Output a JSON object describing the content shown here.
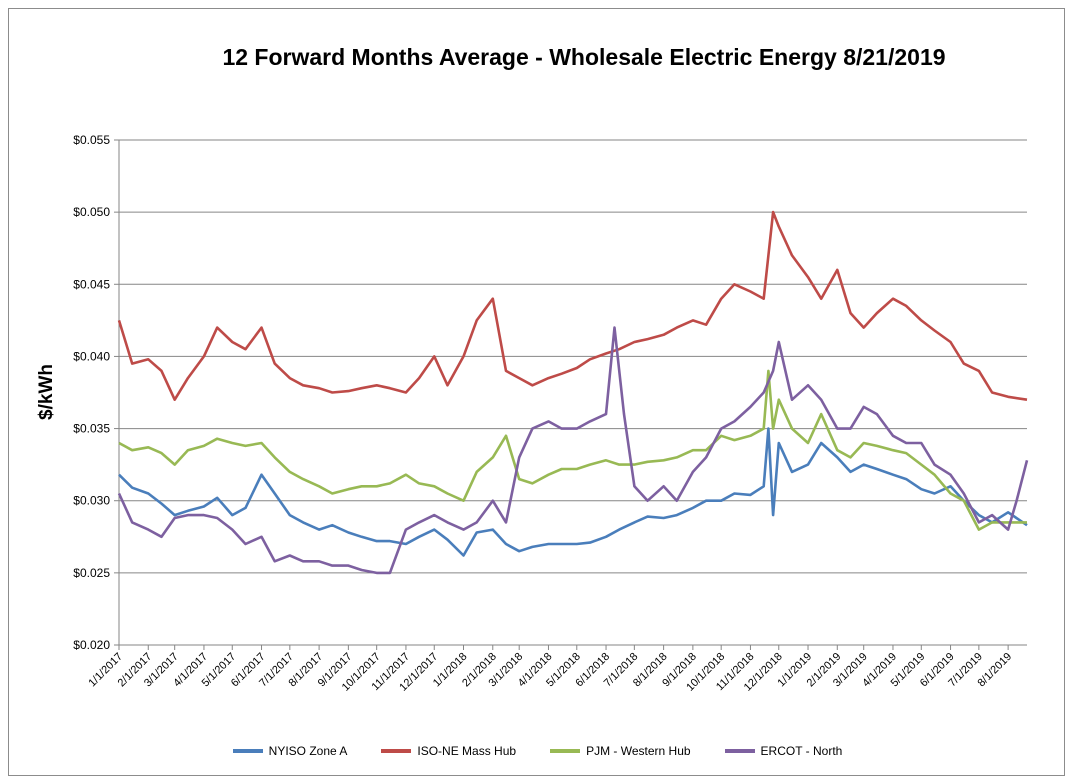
{
  "chart_data": {
    "type": "line",
    "title": "12 Forward Months Average - Wholesale Electric Energy 8/21/2019",
    "ylabel": "$/kWh",
    "xlabel": "",
    "ylim": [
      0.02,
      0.055
    ],
    "y_ticks": [
      "$0.020",
      "$0.025",
      "$0.030",
      "$0.035",
      "$0.040",
      "$0.045",
      "$0.050",
      "$0.055"
    ],
    "x_ticks": [
      "1/1/2017",
      "2/1/2017",
      "3/1/2017",
      "4/1/2017",
      "5/1/2017",
      "6/1/2017",
      "7/1/2017",
      "8/1/2017",
      "9/1/2017",
      "10/1/2017",
      "11/1/2017",
      "12/1/2017",
      "1/1/2018",
      "2/1/2018",
      "3/1/2018",
      "4/1/2018",
      "5/1/2018",
      "6/1/2018",
      "7/1/2018",
      "8/1/2018",
      "9/1/2018",
      "10/1/2018",
      "11/1/2018",
      "12/1/2018",
      "1/1/2019",
      "2/1/2019",
      "3/1/2019",
      "4/1/2019",
      "5/1/2019",
      "6/1/2019",
      "7/1/2019",
      "8/1/2019"
    ],
    "x_range": [
      "1/1/2017",
      "8/21/2019"
    ],
    "grid": "horizontal",
    "legend_position": "bottom",
    "series": [
      {
        "name": "NYISO Zone A",
        "color": "#4a7ebb",
        "x": [
          "1/1/2017",
          "1/15/2017",
          "2/1/2017",
          "2/15/2017",
          "3/1/2017",
          "3/15/2017",
          "4/1/2017",
          "4/15/2017",
          "5/1/2017",
          "5/15/2017",
          "6/1/2017",
          "6/15/2017",
          "7/1/2017",
          "7/15/2017",
          "8/1/2017",
          "8/15/2017",
          "9/1/2017",
          "9/15/2017",
          "10/1/2017",
          "10/15/2017",
          "11/1/2017",
          "11/15/2017",
          "12/1/2017",
          "12/15/2017",
          "1/1/2018",
          "1/15/2018",
          "2/1/2018",
          "2/15/2018",
          "3/1/2018",
          "3/15/2018",
          "4/1/2018",
          "4/15/2018",
          "5/1/2018",
          "5/15/2018",
          "6/1/2018",
          "6/15/2018",
          "7/1/2018",
          "7/15/2018",
          "8/1/2018",
          "8/15/2018",
          "9/1/2018",
          "9/15/2018",
          "10/1/2018",
          "10/15/2018",
          "11/1/2018",
          "11/15/2018",
          "11/20/2018",
          "11/25/2018",
          "12/1/2018",
          "12/15/2018",
          "1/1/2019",
          "1/15/2019",
          "2/1/2019",
          "2/15/2019",
          "3/1/2019",
          "3/15/2019",
          "4/1/2019",
          "4/15/2019",
          "5/1/2019",
          "5/15/2019",
          "6/1/2019",
          "6/15/2019",
          "7/1/2019",
          "7/15/2019",
          "8/1/2019",
          "8/21/2019"
        ],
        "y": [
          0.0318,
          0.0309,
          0.0305,
          0.0298,
          0.029,
          0.0293,
          0.0296,
          0.0302,
          0.029,
          0.0295,
          0.0318,
          0.0305,
          0.029,
          0.0285,
          0.028,
          0.0283,
          0.0278,
          0.0275,
          0.0272,
          0.0272,
          0.027,
          0.0275,
          0.028,
          0.0273,
          0.0262,
          0.0278,
          0.028,
          0.027,
          0.0265,
          0.0268,
          0.027,
          0.027,
          0.027,
          0.0271,
          0.0275,
          0.028,
          0.0285,
          0.0289,
          0.0288,
          0.029,
          0.0295,
          0.03,
          0.03,
          0.0305,
          0.0304,
          0.031,
          0.035,
          0.029,
          0.034,
          0.032,
          0.0325,
          0.034,
          0.033,
          0.032,
          0.0325,
          0.0322,
          0.0318,
          0.0315,
          0.0308,
          0.0305,
          0.031,
          0.03,
          0.029,
          0.0285,
          0.0292,
          0.0283
        ]
      },
      {
        "name": "ISO-NE Mass Hub",
        "color": "#be4b48",
        "x": [
          "1/1/2017",
          "1/15/2017",
          "2/1/2017",
          "2/15/2017",
          "3/1/2017",
          "3/15/2017",
          "4/1/2017",
          "4/15/2017",
          "5/1/2017",
          "5/15/2017",
          "6/1/2017",
          "6/15/2017",
          "7/1/2017",
          "7/15/2017",
          "8/1/2017",
          "8/15/2017",
          "9/1/2017",
          "9/15/2017",
          "10/1/2017",
          "10/15/2017",
          "11/1/2017",
          "11/15/2017",
          "12/1/2017",
          "12/15/2017",
          "1/1/2018",
          "1/15/2018",
          "2/1/2018",
          "2/15/2018",
          "3/1/2018",
          "3/15/2018",
          "4/1/2018",
          "4/15/2018",
          "5/1/2018",
          "5/15/2018",
          "6/1/2018",
          "6/15/2018",
          "7/1/2018",
          "7/15/2018",
          "8/1/2018",
          "8/15/2018",
          "9/1/2018",
          "9/15/2018",
          "10/1/2018",
          "10/15/2018",
          "11/1/2018",
          "11/15/2018",
          "11/25/2018",
          "12/1/2018",
          "12/15/2018",
          "1/1/2019",
          "1/15/2019",
          "2/1/2019",
          "2/15/2019",
          "3/1/2019",
          "3/15/2019",
          "4/1/2019",
          "4/15/2019",
          "5/1/2019",
          "5/15/2019",
          "6/1/2019",
          "6/15/2019",
          "7/1/2019",
          "7/15/2019",
          "8/1/2019",
          "8/21/2019"
        ],
        "y": [
          0.0425,
          0.0395,
          0.0398,
          0.039,
          0.037,
          0.0385,
          0.04,
          0.042,
          0.041,
          0.0405,
          0.042,
          0.0395,
          0.0385,
          0.038,
          0.0378,
          0.0375,
          0.0376,
          0.0378,
          0.038,
          0.0378,
          0.0375,
          0.0385,
          0.04,
          0.038,
          0.04,
          0.0425,
          0.044,
          0.039,
          0.0385,
          0.038,
          0.0385,
          0.0388,
          0.0392,
          0.0398,
          0.0402,
          0.0405,
          0.041,
          0.0412,
          0.0415,
          0.042,
          0.0425,
          0.0422,
          0.044,
          0.045,
          0.0445,
          0.044,
          0.05,
          0.049,
          0.047,
          0.0455,
          0.044,
          0.046,
          0.043,
          0.042,
          0.043,
          0.044,
          0.0435,
          0.0425,
          0.0418,
          0.041,
          0.0395,
          0.039,
          0.0375,
          0.0372,
          0.037
        ]
      },
      {
        "name": "PJM - Western Hub",
        "color": "#98b954",
        "x": [
          "1/1/2017",
          "1/15/2017",
          "2/1/2017",
          "2/15/2017",
          "3/1/2017",
          "3/15/2017",
          "4/1/2017",
          "4/15/2017",
          "5/1/2017",
          "5/15/2017",
          "6/1/2017",
          "6/15/2017",
          "7/1/2017",
          "7/15/2017",
          "8/1/2017",
          "8/15/2017",
          "9/1/2017",
          "9/15/2017",
          "10/1/2017",
          "10/15/2017",
          "11/1/2017",
          "11/15/2017",
          "12/1/2017",
          "12/15/2017",
          "1/1/2018",
          "1/15/2018",
          "2/1/2018",
          "2/15/2018",
          "3/1/2018",
          "3/15/2018",
          "4/1/2018",
          "4/15/2018",
          "5/1/2018",
          "5/15/2018",
          "6/1/2018",
          "6/15/2018",
          "7/1/2018",
          "7/15/2018",
          "8/1/2018",
          "8/15/2018",
          "9/1/2018",
          "9/15/2018",
          "10/1/2018",
          "10/15/2018",
          "11/1/2018",
          "11/15/2018",
          "11/20/2018",
          "11/25/2018",
          "12/1/2018",
          "12/15/2018",
          "1/1/2019",
          "1/15/2019",
          "2/1/2019",
          "2/15/2019",
          "3/1/2019",
          "3/15/2019",
          "4/1/2019",
          "4/15/2019",
          "5/1/2019",
          "5/15/2019",
          "6/1/2019",
          "6/15/2019",
          "7/1/2019",
          "7/15/2019",
          "8/1/2019",
          "8/21/2019"
        ],
        "y": [
          0.034,
          0.0335,
          0.0337,
          0.0333,
          0.0325,
          0.0335,
          0.0338,
          0.0343,
          0.034,
          0.0338,
          0.034,
          0.033,
          0.032,
          0.0315,
          0.031,
          0.0305,
          0.0308,
          0.031,
          0.031,
          0.0312,
          0.0318,
          0.0312,
          0.031,
          0.0305,
          0.03,
          0.032,
          0.033,
          0.0345,
          0.0315,
          0.0312,
          0.0318,
          0.0322,
          0.0322,
          0.0325,
          0.0328,
          0.0325,
          0.0325,
          0.0327,
          0.0328,
          0.033,
          0.0335,
          0.0335,
          0.0345,
          0.0342,
          0.0345,
          0.035,
          0.039,
          0.035,
          0.037,
          0.035,
          0.034,
          0.036,
          0.0335,
          0.033,
          0.034,
          0.0338,
          0.0335,
          0.0333,
          0.0325,
          0.0318,
          0.0305,
          0.03,
          0.028,
          0.0285,
          0.0285,
          0.0285
        ]
      },
      {
        "name": "ERCOT - North",
        "color": "#7d60a0",
        "x": [
          "1/1/2017",
          "1/15/2017",
          "2/1/2017",
          "2/15/2017",
          "3/1/2017",
          "3/15/2017",
          "4/1/2017",
          "4/15/2017",
          "5/1/2017",
          "5/15/2017",
          "6/1/2017",
          "6/15/2017",
          "7/1/2017",
          "7/15/2017",
          "8/1/2017",
          "8/15/2017",
          "9/1/2017",
          "9/15/2017",
          "10/1/2017",
          "10/15/2017",
          "11/1/2017",
          "11/15/2017",
          "12/1/2017",
          "12/15/2017",
          "1/1/2018",
          "1/15/2018",
          "2/1/2018",
          "2/15/2018",
          "3/1/2018",
          "3/15/2018",
          "4/1/2018",
          "4/15/2018",
          "5/1/2018",
          "5/15/2018",
          "6/1/2018",
          "6/10/2018",
          "6/20/2018",
          "7/1/2018",
          "7/15/2018",
          "8/1/2018",
          "8/15/2018",
          "9/1/2018",
          "9/15/2018",
          "10/1/2018",
          "10/15/2018",
          "11/1/2018",
          "11/15/2018",
          "11/25/2018",
          "12/1/2018",
          "12/15/2018",
          "1/1/2019",
          "1/15/2019",
          "2/1/2019",
          "2/15/2019",
          "3/1/2019",
          "3/15/2019",
          "4/1/2019",
          "4/15/2019",
          "5/1/2019",
          "5/15/2019",
          "6/1/2019",
          "6/15/2019",
          "7/1/2019",
          "7/15/2019",
          "8/1/2019",
          "8/10/2019",
          "8/21/2019"
        ],
        "y": [
          0.0305,
          0.0285,
          0.028,
          0.0275,
          0.0288,
          0.029,
          0.029,
          0.0288,
          0.028,
          0.027,
          0.0275,
          0.0258,
          0.0262,
          0.0258,
          0.0258,
          0.0255,
          0.0255,
          0.0252,
          0.025,
          0.025,
          0.028,
          0.0285,
          0.029,
          0.0285,
          0.028,
          0.0285,
          0.03,
          0.0285,
          0.033,
          0.035,
          0.0355,
          0.035,
          0.035,
          0.0355,
          0.036,
          0.042,
          0.036,
          0.031,
          0.03,
          0.031,
          0.03,
          0.032,
          0.033,
          0.035,
          0.0355,
          0.0365,
          0.0375,
          0.039,
          0.041,
          0.037,
          0.038,
          0.037,
          0.035,
          0.035,
          0.0365,
          0.036,
          0.0345,
          0.034,
          0.034,
          0.0325,
          0.0318,
          0.0305,
          0.0285,
          0.029,
          0.028,
          0.03,
          0.0328
        ]
      }
    ]
  }
}
